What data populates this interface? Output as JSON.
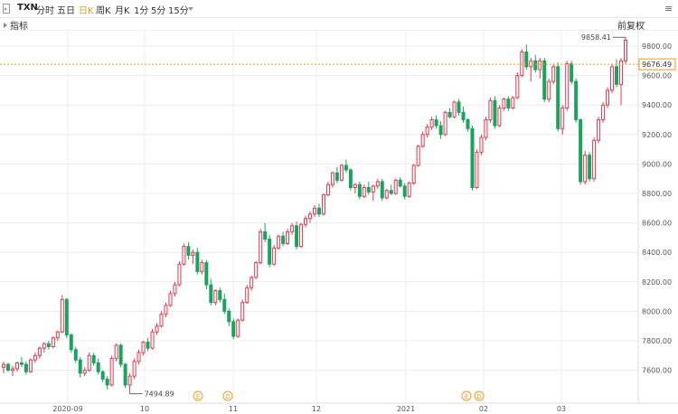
{
  "toolbar": {
    "symbol": "TXN",
    "tabs": [
      "分时",
      "五日",
      "日K",
      "周K",
      "月K",
      "1分",
      "5分",
      "15分"
    ],
    "active_tab": "日K",
    "menu_glyph": "≡"
  },
  "subbar": {
    "indicator_label": "指标",
    "adjust_label": "前复权"
  },
  "colors": {
    "up": "#e8384f",
    "down": "#1aa260",
    "accent": "#f29a1f",
    "grid": "#ececec"
  },
  "events": [
    {
      "label": "E"
    },
    {
      "label": "D"
    },
    {
      "label": "E"
    },
    {
      "label": "D"
    }
  ],
  "chart_data": {
    "type": "candlestick",
    "y_axis_ticks": [
      "9800.00",
      "9600.00",
      "9400.00",
      "9200.00",
      "9000.00",
      "8800.00",
      "8600.00",
      "8400.00",
      "8200.00",
      "8000.00",
      "7800.00",
      "7600.00"
    ],
    "x_axis_labels": [
      "2020-09",
      "10",
      "11",
      "12",
      "2021",
      "02",
      "03"
    ],
    "ylim": [
      7400,
      9900
    ],
    "current_price": "9676.49",
    "high_label": "9858.41",
    "low_label": "7494.89",
    "ohlc": [
      [
        7620,
        7660,
        7580,
        7640
      ],
      [
        7640,
        7650,
        7590,
        7600
      ],
      [
        7600,
        7630,
        7560,
        7610
      ],
      [
        7610,
        7660,
        7590,
        7650
      ],
      [
        7650,
        7690,
        7620,
        7640
      ],
      [
        7640,
        7660,
        7570,
        7590
      ],
      [
        7590,
        7680,
        7580,
        7670
      ],
      [
        7670,
        7720,
        7650,
        7700
      ],
      [
        7700,
        7760,
        7680,
        7750
      ],
      [
        7750,
        7790,
        7720,
        7780
      ],
      [
        7780,
        7800,
        7740,
        7760
      ],
      [
        7760,
        7830,
        7750,
        7820
      ],
      [
        7820,
        7870,
        7800,
        7860
      ],
      [
        7860,
        8110,
        7850,
        8080
      ],
      [
        8080,
        8090,
        7820,
        7840
      ],
      [
        7840,
        7850,
        7720,
        7740
      ],
      [
        7740,
        7760,
        7650,
        7670
      ],
      [
        7670,
        7690,
        7550,
        7580
      ],
      [
        7580,
        7620,
        7560,
        7600
      ],
      [
        7600,
        7720,
        7590,
        7700
      ],
      [
        7700,
        7720,
        7630,
        7650
      ],
      [
        7650,
        7680,
        7570,
        7590
      ],
      [
        7590,
        7600,
        7520,
        7540
      ],
      [
        7540,
        7560,
        7470,
        7500
      ],
      [
        7500,
        7700,
        7490,
        7680
      ],
      [
        7680,
        7780,
        7660,
        7770
      ],
      [
        7770,
        7780,
        7620,
        7640
      ],
      [
        7640,
        7650,
        7480,
        7500
      ],
      [
        7500,
        7580,
        7440,
        7560
      ],
      [
        7560,
        7680,
        7540,
        7660
      ],
      [
        7660,
        7740,
        7640,
        7720
      ],
      [
        7720,
        7800,
        7700,
        7790
      ],
      [
        7790,
        7820,
        7730,
        7750
      ],
      [
        7750,
        7880,
        7740,
        7860
      ],
      [
        7860,
        7920,
        7840,
        7900
      ],
      [
        7900,
        8000,
        7890,
        7980
      ],
      [
        7980,
        8060,
        7960,
        8040
      ],
      [
        8040,
        8140,
        8030,
        8120
      ],
      [
        8120,
        8200,
        8100,
        8180
      ],
      [
        8180,
        8340,
        8170,
        8320
      ],
      [
        8320,
        8460,
        8310,
        8440
      ],
      [
        8440,
        8470,
        8350,
        8380
      ],
      [
        8380,
        8420,
        8320,
        8400
      ],
      [
        8400,
        8430,
        8250,
        8270
      ],
      [
        8270,
        8350,
        8250,
        8330
      ],
      [
        8330,
        8350,
        8150,
        8180
      ],
      [
        8180,
        8220,
        8040,
        8060
      ],
      [
        8060,
        8150,
        8040,
        8140
      ],
      [
        8140,
        8160,
        8060,
        8080
      ],
      [
        8080,
        8120,
        7980,
        8000
      ],
      [
        8000,
        8020,
        7900,
        7930
      ],
      [
        7930,
        7950,
        7810,
        7830
      ],
      [
        7830,
        7950,
        7820,
        7940
      ],
      [
        7940,
        8080,
        7930,
        8060
      ],
      [
        8060,
        8180,
        8050,
        8160
      ],
      [
        8160,
        8240,
        8140,
        8230
      ],
      [
        8230,
        8340,
        8220,
        8330
      ],
      [
        8330,
        8560,
        8320,
        8540
      ],
      [
        8540,
        8600,
        8470,
        8490
      ],
      [
        8490,
        8520,
        8300,
        8320
      ],
      [
        8320,
        8450,
        8310,
        8430
      ],
      [
        8430,
        8520,
        8420,
        8510
      ],
      [
        8510,
        8540,
        8440,
        8460
      ],
      [
        8460,
        8560,
        8450,
        8540
      ],
      [
        8540,
        8600,
        8520,
        8580
      ],
      [
        8580,
        8610,
        8420,
        8440
      ],
      [
        8440,
        8600,
        8430,
        8590
      ],
      [
        8590,
        8650,
        8570,
        8630
      ],
      [
        8630,
        8680,
        8600,
        8660
      ],
      [
        8660,
        8720,
        8640,
        8700
      ],
      [
        8700,
        8730,
        8640,
        8660
      ],
      [
        8660,
        8800,
        8650,
        8790
      ],
      [
        8790,
        8880,
        8780,
        8860
      ],
      [
        8860,
        8950,
        8840,
        8940
      ],
      [
        8940,
        8980,
        8870,
        8890
      ],
      [
        8890,
        9000,
        8880,
        8990
      ],
      [
        8990,
        9030,
        8940,
        8960
      ],
      [
        8960,
        8970,
        8820,
        8840
      ],
      [
        8840,
        8870,
        8800,
        8860
      ],
      [
        8860,
        8880,
        8760,
        8780
      ],
      [
        8780,
        8860,
        8770,
        8840
      ],
      [
        8840,
        8880,
        8790,
        8810
      ],
      [
        8810,
        8860,
        8750,
        8850
      ],
      [
        8850,
        8900,
        8830,
        8880
      ],
      [
        8880,
        8900,
        8750,
        8770
      ],
      [
        8770,
        8830,
        8760,
        8820
      ],
      [
        8820,
        8860,
        8790,
        8800
      ],
      [
        8800,
        8900,
        8790,
        8890
      ],
      [
        8890,
        8910,
        8840,
        8850
      ],
      [
        8850,
        8870,
        8760,
        8780
      ],
      [
        8780,
        8880,
        8770,
        8870
      ],
      [
        8870,
        9000,
        8860,
        8990
      ],
      [
        8990,
        9130,
        8980,
        9120
      ],
      [
        9120,
        9220,
        9110,
        9200
      ],
      [
        9200,
        9270,
        9180,
        9250
      ],
      [
        9250,
        9320,
        9230,
        9300
      ],
      [
        9300,
        9330,
        9240,
        9260
      ],
      [
        9260,
        9290,
        9170,
        9200
      ],
      [
        9200,
        9360,
        9190,
        9350
      ],
      [
        9350,
        9380,
        9310,
        9320
      ],
      [
        9320,
        9430,
        9310,
        9420
      ],
      [
        9420,
        9440,
        9330,
        9350
      ],
      [
        9350,
        9390,
        9280,
        9300
      ],
      [
        9300,
        9310,
        9220,
        9240
      ],
      [
        9240,
        9260,
        8820,
        8840
      ],
      [
        8840,
        9100,
        8830,
        9080
      ],
      [
        9080,
        9200,
        9060,
        9180
      ],
      [
        9180,
        9320,
        9160,
        9300
      ],
      [
        9300,
        9450,
        9280,
        9430
      ],
      [
        9430,
        9460,
        9240,
        9260
      ],
      [
        9260,
        9400,
        9250,
        9380
      ],
      [
        9380,
        9450,
        9360,
        9440
      ],
      [
        9440,
        9460,
        9360,
        9380
      ],
      [
        9380,
        9460,
        9370,
        9450
      ],
      [
        9450,
        9620,
        9440,
        9600
      ],
      [
        9600,
        9780,
        9590,
        9760
      ],
      [
        9760,
        9810,
        9640,
        9660
      ],
      [
        9660,
        9720,
        9560,
        9700
      ],
      [
        9700,
        9740,
        9620,
        9640
      ],
      [
        9640,
        9720,
        9580,
        9700
      ],
      [
        9700,
        9720,
        9420,
        9440
      ],
      [
        9440,
        9580,
        9420,
        9560
      ],
      [
        9560,
        9680,
        9540,
        9660
      ],
      [
        9660,
        9690,
        9220,
        9240
      ],
      [
        9240,
        9400,
        9200,
        9380
      ],
      [
        9380,
        9700,
        9360,
        9680
      ],
      [
        9680,
        9700,
        9540,
        9560
      ],
      [
        9560,
        9580,
        9280,
        9300
      ],
      [
        9300,
        9310,
        8860,
        8880
      ],
      [
        8880,
        9090,
        8860,
        9060
      ],
      [
        9060,
        9080,
        8880,
        8900
      ],
      [
        8900,
        9180,
        8880,
        9160
      ],
      [
        9160,
        9320,
        9140,
        9300
      ],
      [
        9300,
        9420,
        9280,
        9400
      ],
      [
        9400,
        9520,
        9380,
        9500
      ],
      [
        9500,
        9680,
        9480,
        9660
      ],
      [
        9660,
        9710,
        9520,
        9540
      ],
      [
        9540,
        9720,
        9400,
        9700
      ],
      [
        9700,
        9860,
        9680,
        9840
      ]
    ]
  }
}
